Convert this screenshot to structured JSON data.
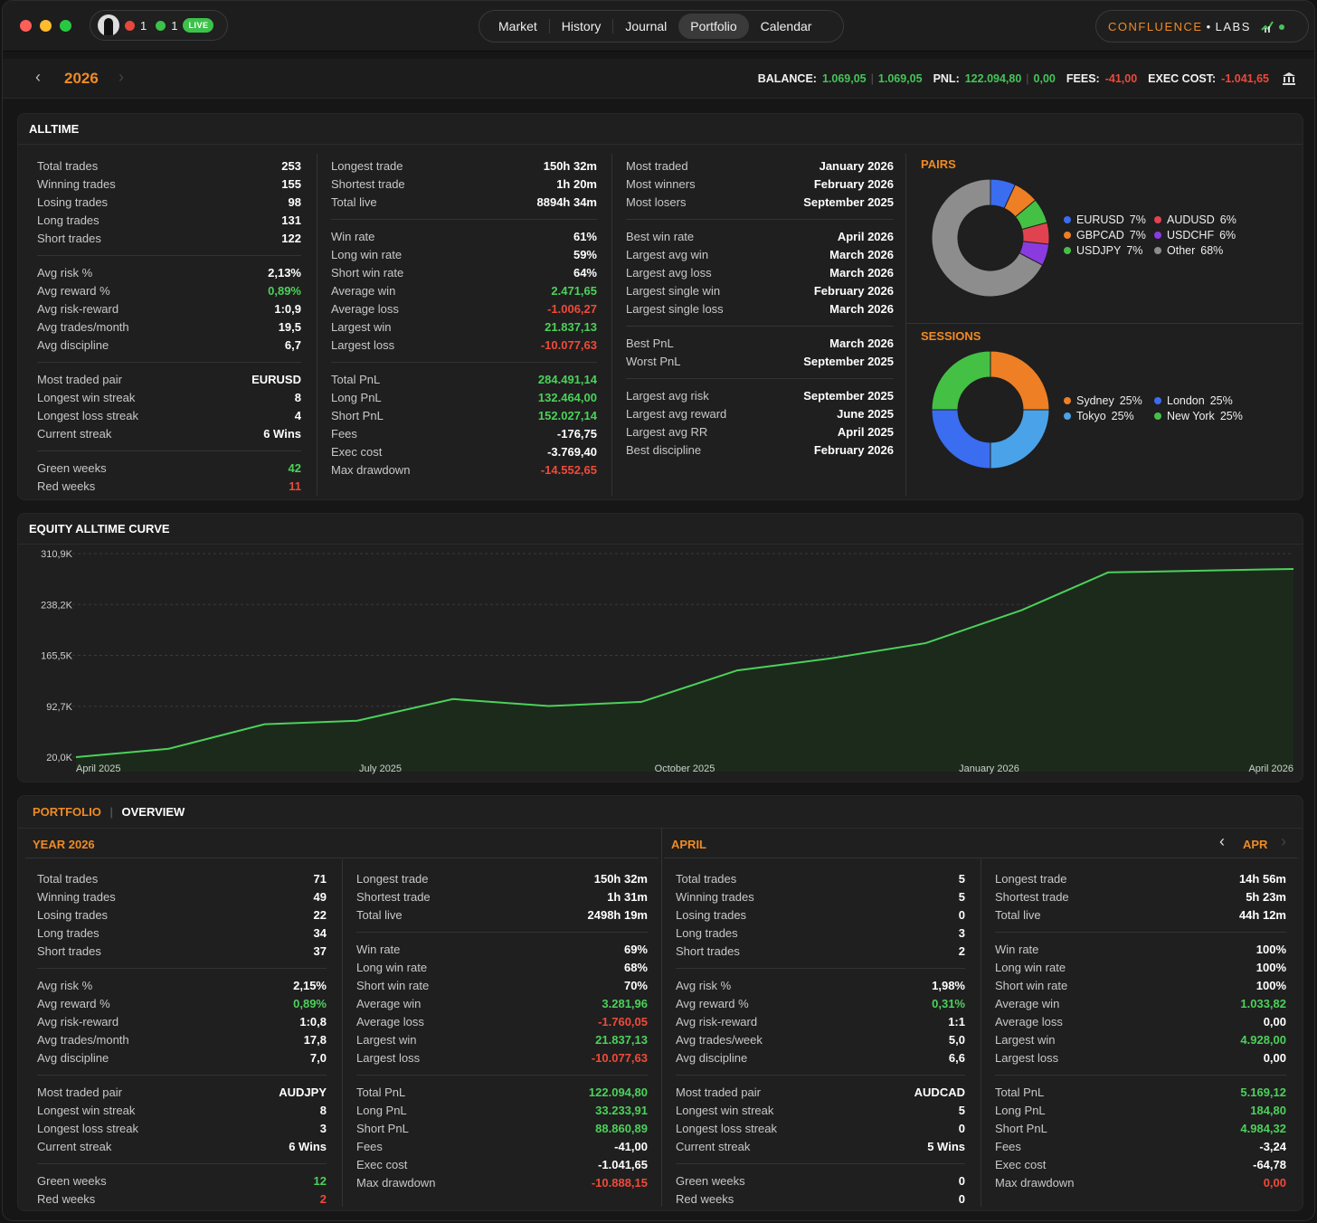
{
  "titlebar": {
    "user": {
      "red_count": "1",
      "green_count": "1",
      "live_label": "LIVE"
    },
    "tabs": [
      "Market",
      "History",
      "Journal",
      "Portfolio",
      "Calendar"
    ],
    "active_tab": "Portfolio",
    "brand": {
      "name": "CONFLUENCE",
      "dot": "•",
      "suffix": "LABS"
    }
  },
  "topbar": {
    "year": "2026",
    "balance_label": "BALANCE:",
    "balance_a": "1.069,05",
    "balance_b": "1.069,05",
    "pnl_label": "PNL:",
    "pnl_a": "122.094,80",
    "pnl_b": "0,00",
    "fees_label": "FEES:",
    "fees": "-41,00",
    "exec_label": "EXEC COST:",
    "exec": "-1.041,65"
  },
  "alltime": {
    "title": "ALLTIME",
    "col1": [
      [
        {
          "k": "Total trades",
          "v": "253"
        },
        {
          "k": "Winning trades",
          "v": "155"
        },
        {
          "k": "Losing trades",
          "v": "98"
        },
        {
          "k": "Long trades",
          "v": "131"
        },
        {
          "k": "Short trades",
          "v": "122"
        }
      ],
      [
        {
          "k": "Avg risk %",
          "v": "2,13%"
        },
        {
          "k": "Avg reward %",
          "v": "0,89%",
          "c": "g"
        },
        {
          "k": "Avg risk-reward",
          "v": "1:0,9"
        },
        {
          "k": "Avg trades/month",
          "v": "19,5"
        },
        {
          "k": "Avg discipline",
          "v": "6,7"
        }
      ],
      [
        {
          "k": "Most traded pair",
          "v": "EURUSD"
        },
        {
          "k": "Longest win streak",
          "v": "8"
        },
        {
          "k": "Longest loss streak",
          "v": "4"
        },
        {
          "k": "Current streak",
          "v": "6 Wins"
        }
      ],
      [
        {
          "k": "Green weeks",
          "v": "42",
          "c": "g"
        },
        {
          "k": "Red weeks",
          "v": "11",
          "c": "r"
        }
      ]
    ],
    "col2": [
      [
        {
          "k": "Longest trade",
          "v": "150h 32m"
        },
        {
          "k": "Shortest trade",
          "v": "1h 20m"
        },
        {
          "k": "Total live",
          "v": "8894h 34m"
        }
      ],
      [
        {
          "k": "Win rate",
          "v": "61%"
        },
        {
          "k": "Long win rate",
          "v": "59%"
        },
        {
          "k": "Short win rate",
          "v": "64%"
        },
        {
          "k": "Average win",
          "v": "2.471,65",
          "c": "g"
        },
        {
          "k": "Average loss",
          "v": "-1.006,27",
          "c": "r"
        },
        {
          "k": "Largest win",
          "v": "21.837,13",
          "c": "g"
        },
        {
          "k": "Largest loss",
          "v": "-10.077,63",
          "c": "r"
        }
      ],
      [
        {
          "k": "Total PnL",
          "v": "284.491,14",
          "c": "g"
        },
        {
          "k": "Long PnL",
          "v": "132.464,00",
          "c": "g"
        },
        {
          "k": "Short PnL",
          "v": "152.027,14",
          "c": "g"
        },
        {
          "k": "Fees",
          "v": "-176,75"
        },
        {
          "k": "Exec cost",
          "v": "-3.769,40"
        },
        {
          "k": "Max drawdown",
          "v": "-14.552,65",
          "c": "r"
        }
      ]
    ],
    "col3": [
      [
        {
          "k": "Most traded",
          "v": "January 2026"
        },
        {
          "k": "Most winners",
          "v": "February 2026"
        },
        {
          "k": "Most losers",
          "v": "September 2025"
        }
      ],
      [
        {
          "k": "Best win rate",
          "v": "April 2026"
        },
        {
          "k": "Largest avg win",
          "v": "March 2026"
        },
        {
          "k": "Largest avg loss",
          "v": "March 2026"
        },
        {
          "k": "Largest single win",
          "v": "February 2026"
        },
        {
          "k": "Largest single loss",
          "v": "March 2026"
        }
      ],
      [
        {
          "k": "Best PnL",
          "v": "March 2026"
        },
        {
          "k": "Worst PnL",
          "v": "September 2025"
        }
      ],
      [
        {
          "k": "Largest avg risk",
          "v": "September 2025"
        },
        {
          "k": "Largest avg reward",
          "v": "June 2025"
        },
        {
          "k": "Largest avg RR",
          "v": "April 2025"
        },
        {
          "k": "Best discipline",
          "v": "February 2026"
        }
      ]
    ],
    "pairs": {
      "title": "PAIRS",
      "items": [
        {
          "label": "EURUSD",
          "pct": "7%",
          "value": 7,
          "color": "#3a6df0"
        },
        {
          "label": "AUDUSD",
          "pct": "6%",
          "value": 6,
          "color": "#e0434f"
        },
        {
          "label": "GBPCAD",
          "pct": "7%",
          "value": 7,
          "color": "#ee7f24"
        },
        {
          "label": "USDCHF",
          "pct": "6%",
          "value": 6,
          "color": "#8a3be0"
        },
        {
          "label": "USDJPY",
          "pct": "7%",
          "value": 7,
          "color": "#44c045"
        },
        {
          "label": "Other",
          "pct": "68%",
          "value": 68,
          "color": "#8d8d8d"
        }
      ]
    },
    "sessions": {
      "title": "SESSIONS",
      "items": [
        {
          "label": "Sydney",
          "pct": "25%",
          "value": 25,
          "color": "#ee7f24"
        },
        {
          "label": "London",
          "pct": "25%",
          "value": 25,
          "color": "#3a6df0"
        },
        {
          "label": "Tokyo",
          "pct": "25%",
          "value": 25,
          "color": "#4aa3e8"
        },
        {
          "label": "New York",
          "pct": "25%",
          "value": 25,
          "color": "#44c045"
        }
      ]
    }
  },
  "equity": {
    "title": "EQUITY ALLTIME CURVE",
    "chart_data": {
      "type": "area",
      "title": "EQUITY ALLTIME CURVE",
      "y_ticks": [
        "310,9K",
        "238,2K",
        "165,5K",
        "92,7K",
        "20,0K"
      ],
      "x_ticks": [
        "April 2025",
        "July 2025",
        "October 2025",
        "January 2026",
        "April 2026"
      ],
      "ylim": [
        20000,
        310900
      ],
      "x_range": [
        "2025-04-01",
        "2026-04-30"
      ],
      "grid": true,
      "points": [
        {
          "x": "2025-04-01",
          "y": 20000
        },
        {
          "x": "2025-05-01",
          "y": 32000
        },
        {
          "x": "2025-06-01",
          "y": 67000
        },
        {
          "x": "2025-07-01",
          "y": 72000
        },
        {
          "x": "2025-08-01",
          "y": 103000
        },
        {
          "x": "2025-09-01",
          "y": 93000
        },
        {
          "x": "2025-10-01",
          "y": 99000
        },
        {
          "x": "2025-11-01",
          "y": 144000
        },
        {
          "x": "2025-12-01",
          "y": 161000
        },
        {
          "x": "2026-01-01",
          "y": 183000
        },
        {
          "x": "2026-02-01",
          "y": 230000
        },
        {
          "x": "2026-03-01",
          "y": 284000
        },
        {
          "x": "2026-04-30",
          "y": 289000
        }
      ]
    }
  },
  "portfolio": {
    "tab1": "PORTFOLIO",
    "sep": "|",
    "tab2": "OVERVIEW",
    "year_title": "YEAR 2026",
    "month_title": "APRIL",
    "month_nav": "APR",
    "year_col1": [
      [
        {
          "k": "Total trades",
          "v": "71"
        },
        {
          "k": "Winning trades",
          "v": "49"
        },
        {
          "k": "Losing trades",
          "v": "22"
        },
        {
          "k": "Long trades",
          "v": "34"
        },
        {
          "k": "Short trades",
          "v": "37"
        }
      ],
      [
        {
          "k": "Avg risk %",
          "v": "2,15%"
        },
        {
          "k": "Avg reward %",
          "v": "0,89%",
          "c": "g"
        },
        {
          "k": "Avg risk-reward",
          "v": "1:0,8"
        },
        {
          "k": "Avg trades/month",
          "v": "17,8"
        },
        {
          "k": "Avg discipline",
          "v": "7,0"
        }
      ],
      [
        {
          "k": "Most traded pair",
          "v": "AUDJPY"
        },
        {
          "k": "Longest win streak",
          "v": "8"
        },
        {
          "k": "Longest loss streak",
          "v": "3"
        },
        {
          "k": "Current streak",
          "v": "6 Wins"
        }
      ],
      [
        {
          "k": "Green weeks",
          "v": "12",
          "c": "g"
        },
        {
          "k": "Red weeks",
          "v": "2",
          "c": "r"
        }
      ]
    ],
    "year_col2": [
      [
        {
          "k": "Longest trade",
          "v": "150h 32m"
        },
        {
          "k": "Shortest trade",
          "v": "1h 31m"
        },
        {
          "k": "Total live",
          "v": "2498h 19m"
        }
      ],
      [
        {
          "k": "Win rate",
          "v": "69%"
        },
        {
          "k": "Long win rate",
          "v": "68%"
        },
        {
          "k": "Short win rate",
          "v": "70%"
        },
        {
          "k": "Average win",
          "v": "3.281,96",
          "c": "g"
        },
        {
          "k": "Average loss",
          "v": "-1.760,05",
          "c": "r"
        },
        {
          "k": "Largest win",
          "v": "21.837,13",
          "c": "g"
        },
        {
          "k": "Largest loss",
          "v": "-10.077,63",
          "c": "r"
        }
      ],
      [
        {
          "k": "Total PnL",
          "v": "122.094,80",
          "c": "g"
        },
        {
          "k": "Long PnL",
          "v": "33.233,91",
          "c": "g"
        },
        {
          "k": "Short PnL",
          "v": "88.860,89",
          "c": "g"
        },
        {
          "k": "Fees",
          "v": "-41,00"
        },
        {
          "k": "Exec cost",
          "v": "-1.041,65"
        },
        {
          "k": "Max drawdown",
          "v": "-10.888,15",
          "c": "r"
        }
      ]
    ],
    "month_col1": [
      [
        {
          "k": "Total trades",
          "v": "5"
        },
        {
          "k": "Winning trades",
          "v": "5"
        },
        {
          "k": "Losing trades",
          "v": "0"
        },
        {
          "k": "Long trades",
          "v": "3"
        },
        {
          "k": "Short trades",
          "v": "2"
        }
      ],
      [
        {
          "k": "Avg risk %",
          "v": "1,98%"
        },
        {
          "k": "Avg reward %",
          "v": "0,31%",
          "c": "g"
        },
        {
          "k": "Avg risk-reward",
          "v": "1:1"
        },
        {
          "k": "Avg trades/week",
          "v": "5,0"
        },
        {
          "k": "Avg discipline",
          "v": "6,6"
        }
      ],
      [
        {
          "k": "Most traded pair",
          "v": "AUDCAD"
        },
        {
          "k": "Longest win streak",
          "v": "5"
        },
        {
          "k": "Longest loss streak",
          "v": "0"
        },
        {
          "k": "Current streak",
          "v": "5 Wins"
        }
      ],
      [
        {
          "k": "Green weeks",
          "v": "0"
        },
        {
          "k": "Red weeks",
          "v": "0"
        }
      ]
    ],
    "month_col2": [
      [
        {
          "k": "Longest trade",
          "v": "14h 56m"
        },
        {
          "k": "Shortest trade",
          "v": "5h 23m"
        },
        {
          "k": "Total live",
          "v": "44h 12m"
        }
      ],
      [
        {
          "k": "Win rate",
          "v": "100%"
        },
        {
          "k": "Long win rate",
          "v": "100%"
        },
        {
          "k": "Short win rate",
          "v": "100%"
        },
        {
          "k": "Average win",
          "v": "1.033,82",
          "c": "g"
        },
        {
          "k": "Average loss",
          "v": "0,00"
        },
        {
          "k": "Largest win",
          "v": "4.928,00",
          "c": "g"
        },
        {
          "k": "Largest loss",
          "v": "0,00"
        }
      ],
      [
        {
          "k": "Total PnL",
          "v": "5.169,12",
          "c": "g"
        },
        {
          "k": "Long PnL",
          "v": "184,80",
          "c": "g"
        },
        {
          "k": "Short PnL",
          "v": "4.984,32",
          "c": "g"
        },
        {
          "k": "Fees",
          "v": "-3,24"
        },
        {
          "k": "Exec cost",
          "v": "-64,78"
        },
        {
          "k": "Max drawdown",
          "v": "0,00",
          "c": "r"
        }
      ]
    ]
  }
}
